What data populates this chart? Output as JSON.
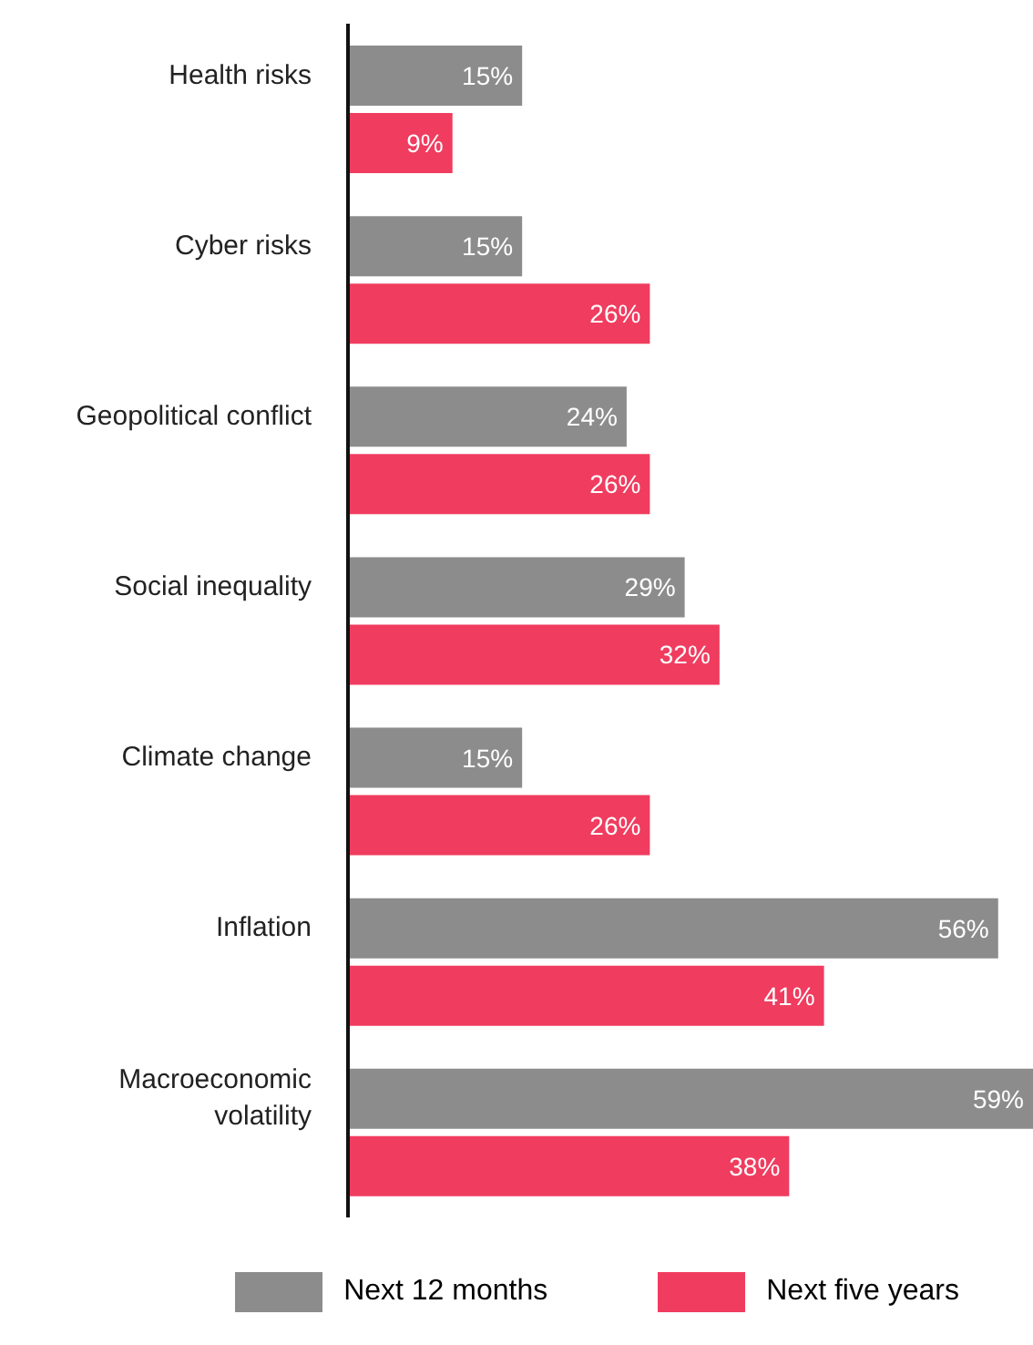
{
  "chart_data": {
    "type": "bar",
    "orientation": "horizontal",
    "categories": [
      "Health risks",
      "Cyber risks",
      "Geopolitical conflict",
      "Social inequality",
      "Climate change",
      "Inflation",
      "Macroeconomic volatility"
    ],
    "series": [
      {
        "name": "Next 12 months",
        "color": "#8c8c8c",
        "values": [
          15,
          15,
          24,
          29,
          15,
          56,
          59
        ],
        "value_labels": [
          "15%",
          "15%",
          "24%",
          "29%",
          "15%",
          "56%",
          "59%"
        ]
      },
      {
        "name": "Next five years",
        "color": "#f03c5f",
        "values": [
          9,
          26,
          26,
          32,
          26,
          41,
          38
        ],
        "value_labels": [
          "9%",
          "26%",
          "26%",
          "32%",
          "26%",
          "41%",
          "38%"
        ]
      }
    ],
    "legend": "bottom",
    "grid": false
  }
}
